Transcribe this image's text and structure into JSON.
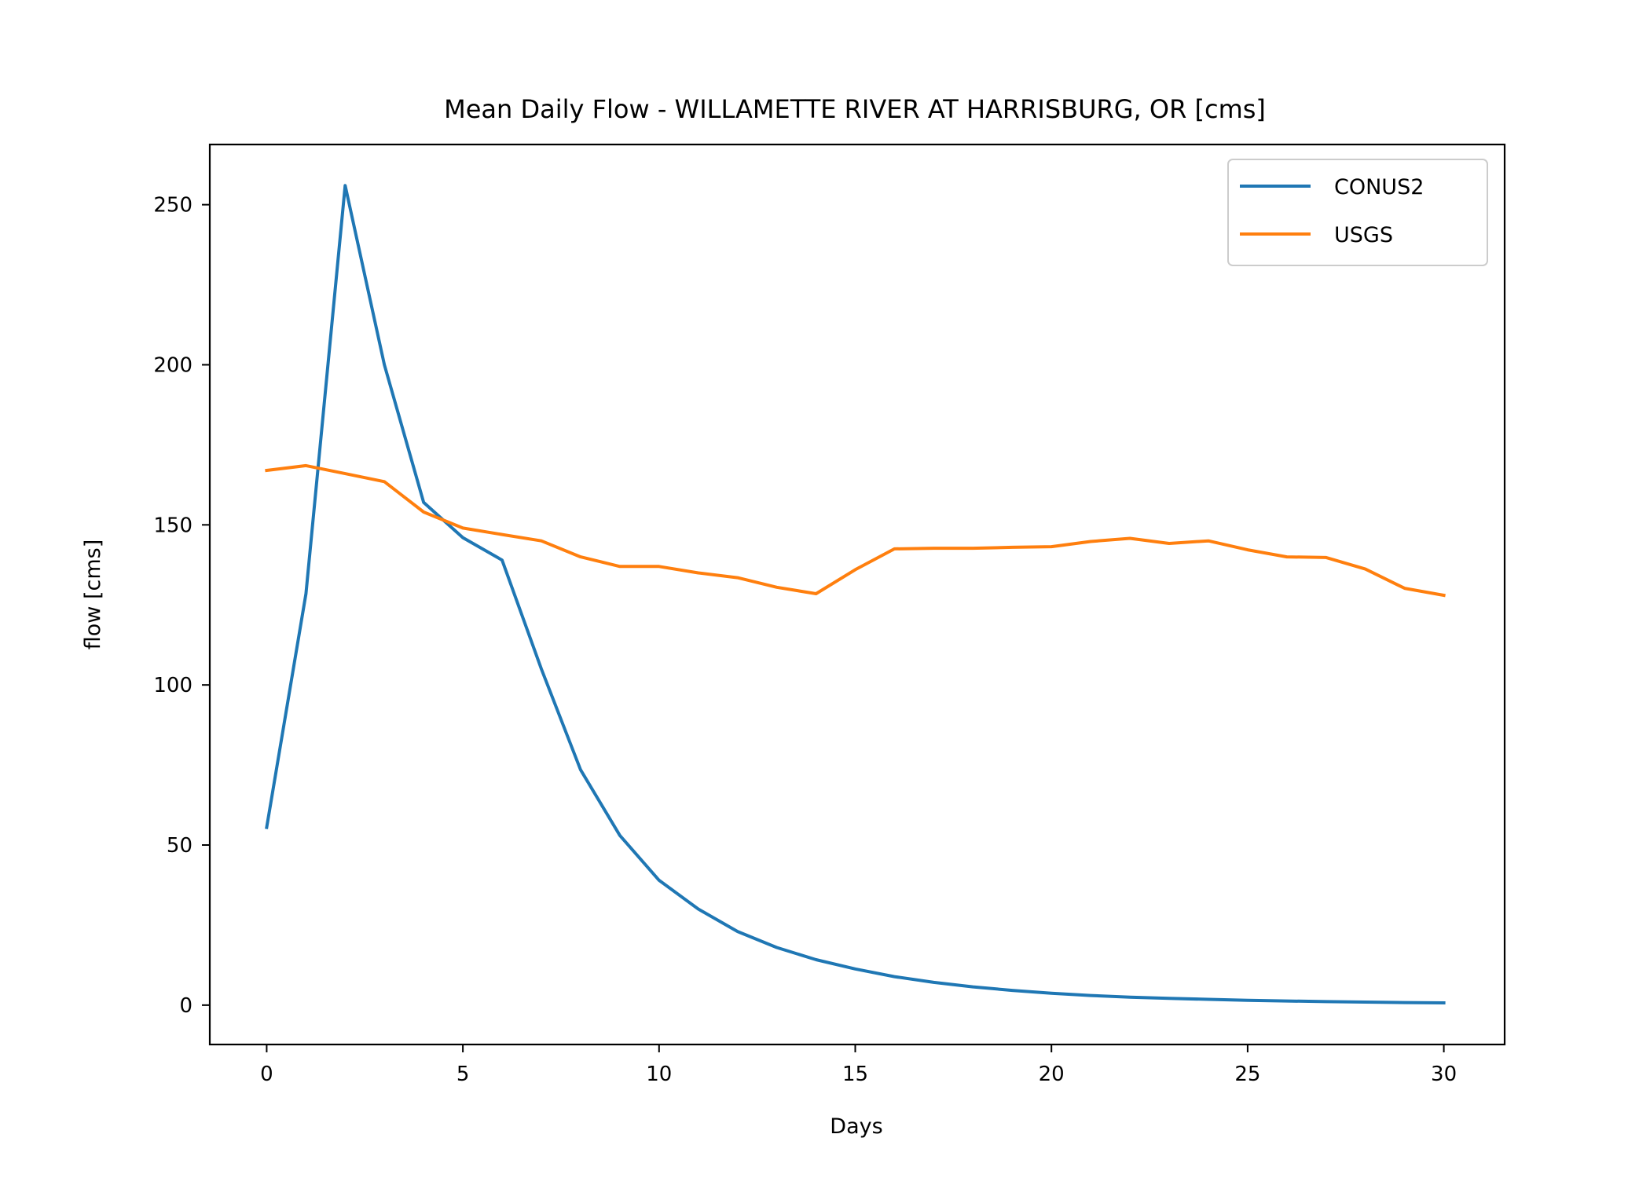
{
  "chart_data": {
    "type": "line",
    "title": "Mean Daily Flow - WILLAMETTE RIVER AT HARRISBURG, OR [cms]",
    "xlabel": "Days",
    "ylabel": "flow [cms]",
    "xlim": [
      -1.45,
      31.55
    ],
    "ylim": [
      -12.3,
      268.8
    ],
    "xticks": [
      0,
      5,
      10,
      15,
      20,
      25,
      30
    ],
    "yticks": [
      0,
      50,
      100,
      150,
      200,
      250
    ],
    "grid": false,
    "legend_position": "top-right",
    "x": [
      0,
      1,
      2,
      3,
      4,
      5,
      6,
      7,
      8,
      9,
      10,
      11,
      12,
      13,
      14,
      15,
      16,
      17,
      18,
      19,
      20,
      21,
      22,
      23,
      24,
      25,
      26,
      27,
      28,
      29,
      30
    ],
    "series": [
      {
        "name": "CONUS2",
        "color": "#1f77b4",
        "values": [
          55.5,
          128.5,
          256,
          200,
          157,
          146,
          139,
          105,
          73.5,
          53,
          39,
          30,
          23,
          18,
          14.2,
          11.3,
          8.9,
          7.1,
          5.7,
          4.6,
          3.7,
          3.0,
          2.5,
          2.1,
          1.8,
          1.5,
          1.3,
          1.1,
          0.95,
          0.8,
          0.7
        ]
      },
      {
        "name": "USGS",
        "color": "#ff7f0e",
        "values": [
          167,
          168.5,
          166,
          163.5,
          154,
          149,
          147,
          145,
          140,
          137,
          137,
          135,
          133.5,
          130.5,
          128.5,
          136,
          142.5,
          142.7,
          142.7,
          143,
          143.2,
          144.8,
          145.8,
          144.2,
          145,
          142.2,
          140,
          139.8,
          136.2,
          130.2,
          128
        ]
      }
    ]
  }
}
